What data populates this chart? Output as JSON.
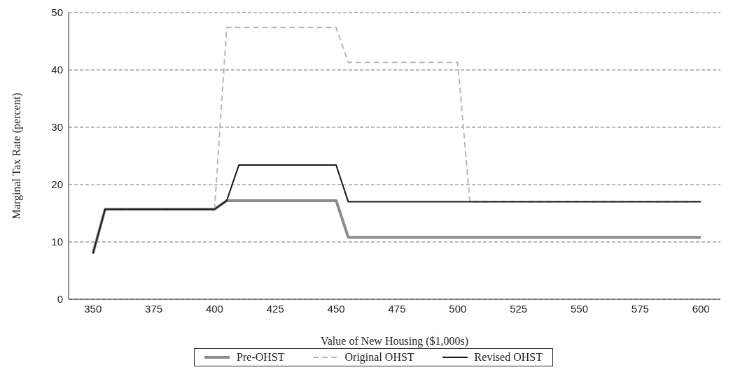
{
  "chart_data": {
    "type": "line",
    "xlabel": "Value of New Housing ($1,000s)",
    "ylabel": "Marginal Tax Rate (percent)",
    "xlim": [
      340,
      608
    ],
    "xticks": [
      350,
      375,
      400,
      425,
      450,
      475,
      500,
      525,
      550,
      575,
      600
    ],
    "ylim": [
      0,
      50
    ],
    "yticks": [
      0,
      10,
      20,
      30,
      40,
      50
    ],
    "grid": "y",
    "legend": "bottom",
    "marker": "none",
    "series": [
      {
        "name": "Pre-OHST",
        "color": "#8c8c8c",
        "line_style": "solid",
        "x": [
          350,
          355,
          400,
          405,
          450,
          455,
          600
        ],
        "values": [
          8,
          15.7,
          15.7,
          17.2,
          17.2,
          10.8,
          10.8
        ]
      },
      {
        "name": "Original OHST",
        "color": "#b8b8b8",
        "line_style": "dashed",
        "x": [
          350,
          355,
          400,
          405,
          450,
          455,
          500,
          505,
          600
        ],
        "values": [
          8,
          15.7,
          15.7,
          47.4,
          47.4,
          41.3,
          41.3,
          17,
          17
        ]
      },
      {
        "name": "Revised OHST",
        "color": "#1a1a1a",
        "line_style": "solid",
        "x": [
          350,
          355,
          400,
          405,
          410,
          450,
          455,
          600
        ],
        "values": [
          8,
          15.7,
          15.7,
          17.2,
          23.4,
          23.4,
          17,
          17
        ]
      }
    ]
  }
}
